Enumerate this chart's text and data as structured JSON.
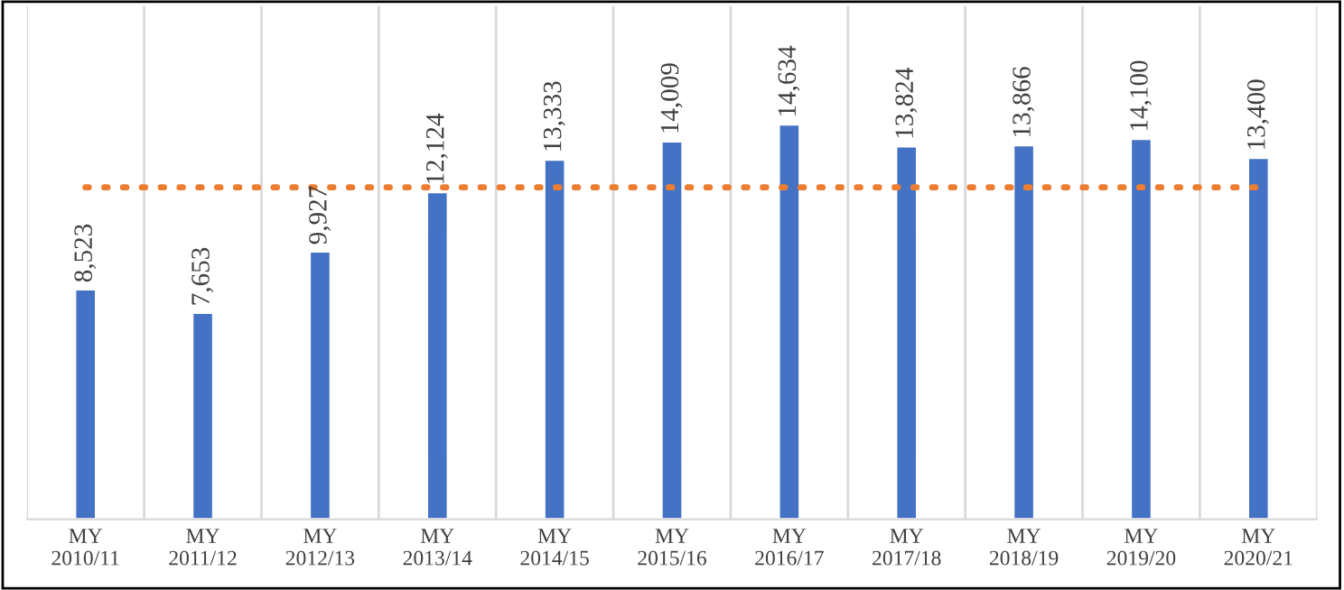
{
  "chart_data": {
    "type": "bar",
    "categories": [
      "MY\n2010/11",
      "MY\n2011/12",
      "MY\n2012/13",
      "MY\n2013/14",
      "MY\n2014/15",
      "MY\n2015/16",
      "MY\n2016/17",
      "MY\n2017/18",
      "MY\n2018/19",
      "MY\n2019/20",
      "MY\n2020/21"
    ],
    "values": [
      8523,
      7653,
      9927,
      12124,
      13333,
      14009,
      14634,
      13824,
      13866,
      14100,
      13400
    ],
    "color": "#4472c4",
    "data_labels": true,
    "value_labels": [
      "8,523",
      "7,653",
      "9,927",
      "12,124",
      "13,333",
      "14,009",
      "14,634",
      "13,824",
      "13,866",
      "14,100",
      "13,400"
    ],
    "ref_lines": [
      {
        "axis": "y",
        "value": 12300,
        "color": "#ed7d31",
        "line_style": "dotted"
      }
    ],
    "grid": "x",
    "tick_labels": "x",
    "legend": false
  }
}
